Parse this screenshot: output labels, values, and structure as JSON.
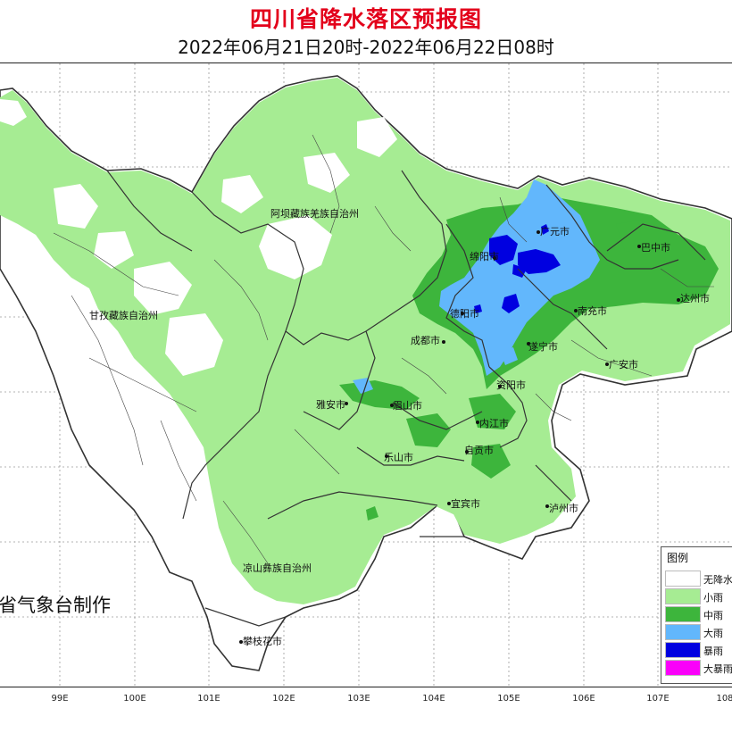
{
  "title": "四川省降水落区预报图",
  "subtitle": "2022年06月21日20时-2022年06月22日08时",
  "maker": "省气象台制作",
  "cities": [
    {
      "name": "广元市"
    },
    {
      "name": "巴中市"
    },
    {
      "name": "绵阳市"
    },
    {
      "name": "达州市"
    },
    {
      "name": "德阳市"
    },
    {
      "name": "南充市"
    },
    {
      "name": "成都市"
    },
    {
      "name": "遂宁市"
    },
    {
      "name": "广安市"
    },
    {
      "name": "资阳市"
    },
    {
      "name": "雅安市"
    },
    {
      "name": "眉山市"
    },
    {
      "name": "内江市"
    },
    {
      "name": "乐山市"
    },
    {
      "name": "自贡市"
    },
    {
      "name": "宜宾市"
    },
    {
      "name": "泸州市"
    },
    {
      "name": "攀枝花市"
    }
  ],
  "prefectures": [
    {
      "name": "阿坝藏族羌族自治州"
    },
    {
      "name": "甘孜藏族自治州"
    },
    {
      "name": "凉山彝族自治州"
    }
  ],
  "x_axis_ticks": [
    "99E",
    "100E",
    "101E",
    "102E",
    "103E",
    "104E",
    "105E",
    "106E",
    "107E",
    "108"
  ],
  "legend": {
    "title": "图例",
    "items": [
      {
        "label": "无降水",
        "color": "#ffffff"
      },
      {
        "label": "小雨",
        "color": "#a6ec93"
      },
      {
        "label": "中雨",
        "color": "#3db53c"
      },
      {
        "label": "大雨",
        "color": "#62b7fc"
      },
      {
        "label": "暴雨",
        "color": "#0000e0"
      },
      {
        "label": "大暴雨",
        "color": "#fa00fa"
      }
    ]
  }
}
